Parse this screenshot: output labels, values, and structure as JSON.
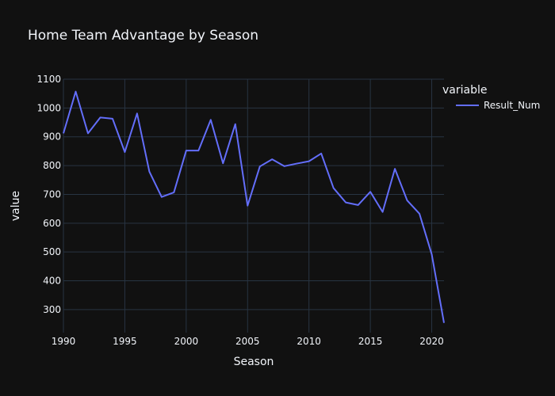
{
  "colors": {
    "background": "#111111",
    "grid": "#283442",
    "text": "#f2f5fa",
    "series": "#636efa"
  },
  "chart_data": {
    "type": "line",
    "title": "Home Team Advantage by Season",
    "xlabel": "Season",
    "ylabel": "value",
    "legend_title": "variable",
    "legend_position": "top-right",
    "grid": true,
    "xlim": [
      1990,
      2021
    ],
    "ylim": [
      220,
      1100
    ],
    "x_ticks": [
      1990,
      1995,
      2000,
      2005,
      2010,
      2015,
      2020
    ],
    "y_ticks": [
      300,
      400,
      500,
      600,
      700,
      800,
      900,
      1000,
      1100
    ],
    "x": [
      1990,
      1991,
      1992,
      1993,
      1994,
      1995,
      1996,
      1997,
      1998,
      1999,
      2000,
      2001,
      2002,
      2003,
      2004,
      2005,
      2006,
      2007,
      2008,
      2009,
      2010,
      2011,
      2012,
      2013,
      2014,
      2015,
      2016,
      2017,
      2018,
      2019,
      2020,
      2021
    ],
    "series": [
      {
        "name": "Result_Num",
        "values": [
          912,
          1057,
          912,
          967,
          963,
          847,
          981,
          779,
          691,
          707,
          852,
          852,
          959,
          808,
          944,
          661,
          797,
          822,
          798,
          807,
          815,
          842,
          722,
          672,
          663,
          709,
          639,
          789,
          679,
          633,
          492,
          254
        ]
      }
    ]
  }
}
